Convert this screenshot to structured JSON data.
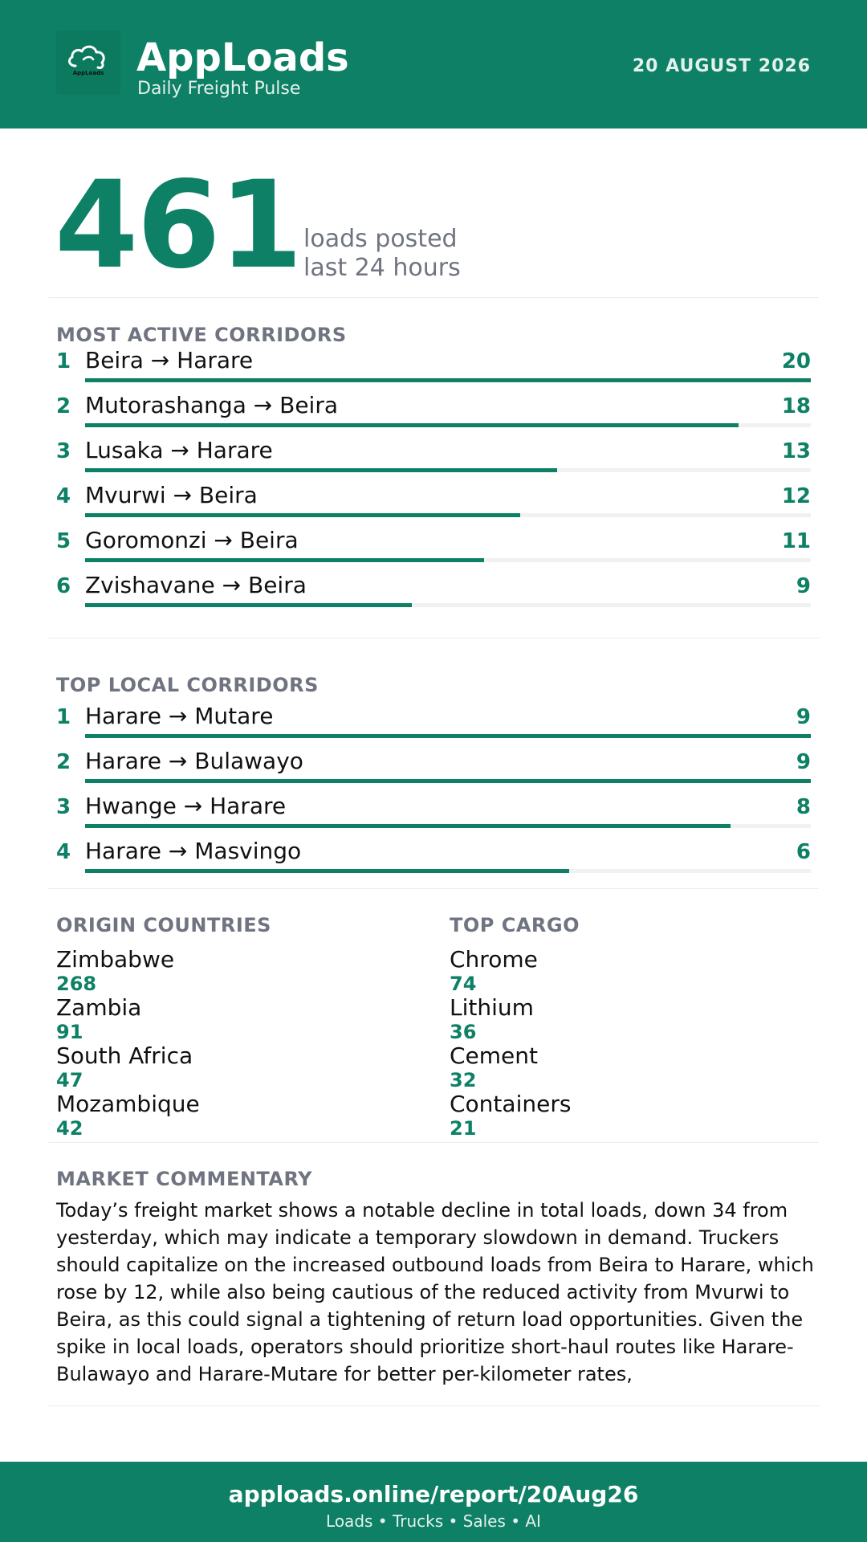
{
  "header": {
    "logo_icon": "cloud-loads-icon",
    "logo_text": "AppLoads",
    "brand_name": "AppLoads",
    "subtitle": "Daily Freight Pulse",
    "date": "20 AUGUST 2026"
  },
  "summary": {
    "total_loads": "461",
    "label_line1": "loads posted",
    "label_line2": "last 24 hours"
  },
  "most_active": {
    "title": "MOST ACTIVE CORRIDORS",
    "max": 20,
    "items": [
      {
        "rank": "1",
        "route": "Beira → Harare",
        "count": 20
      },
      {
        "rank": "2",
        "route": "Mutorashanga → Beira",
        "count": 18
      },
      {
        "rank": "3",
        "route": "Lusaka → Harare",
        "count": 13
      },
      {
        "rank": "4",
        "route": "Mvurwi → Beira",
        "count": 12
      },
      {
        "rank": "5",
        "route": "Goromonzi → Beira",
        "count": 11
      },
      {
        "rank": "6",
        "route": "Zvishavane → Beira",
        "count": 9
      }
    ]
  },
  "top_local": {
    "title": "TOP LOCAL CORRIDORS",
    "max": 9,
    "items": [
      {
        "rank": "1",
        "route": "Harare → Mutare",
        "count": 9
      },
      {
        "rank": "2",
        "route": "Harare → Bulawayo",
        "count": 9
      },
      {
        "rank": "3",
        "route": "Hwange → Harare",
        "count": 8
      },
      {
        "rank": "4",
        "route": "Harare → Masvingo",
        "count": 6
      }
    ]
  },
  "origin_countries": {
    "title": "ORIGIN COUNTRIES",
    "items": [
      {
        "name": "Zimbabwe",
        "value": "268"
      },
      {
        "name": "Zambia",
        "value": "91"
      },
      {
        "name": "South Africa",
        "value": "47"
      },
      {
        "name": "Mozambique",
        "value": "42"
      }
    ]
  },
  "top_cargo": {
    "title": "TOP CARGO",
    "items": [
      {
        "name": "Chrome",
        "value": "74"
      },
      {
        "name": "Lithium",
        "value": "36"
      },
      {
        "name": "Cement",
        "value": "32"
      },
      {
        "name": "Containers",
        "value": "21"
      }
    ]
  },
  "commentary": {
    "title": "MARKET COMMENTARY",
    "text": "Today’s freight market shows a notable decline in total loads, down 34 from yesterday, which may indicate a temporary slowdown in demand. Truckers should capitalize on the increased outbound loads from Beira to Harare, which rose by 12, while also being cautious of the reduced activity from Mvurwi to Beira, as this could signal a tightening of return load opportunities. Given the spike in local loads, operators should prioritize short-haul routes like Harare-Bulawayo and Harare-Mutare for better per-kilometer rates,"
  },
  "footer": {
    "url": "apploads.online/report/20Aug26",
    "tagline": "Loads • Trucks • Sales • AI"
  },
  "colors": {
    "brand": "#0e8065",
    "muted": "#6f7480",
    "track": "#f1f1f1"
  }
}
